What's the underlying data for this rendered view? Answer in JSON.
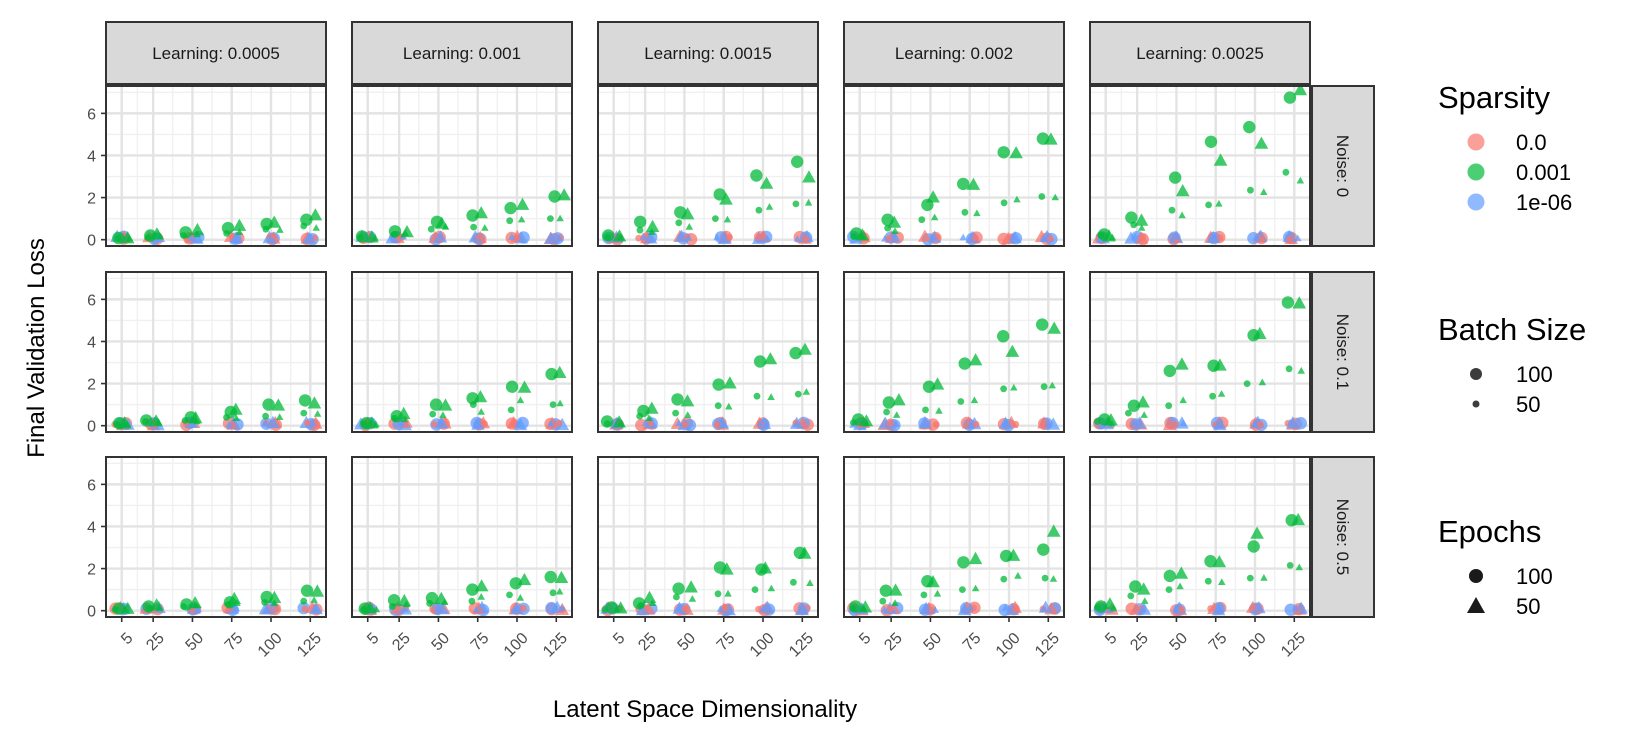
{
  "chart_data": {
    "type": "scatter",
    "xlabel": "Latent Space Dimensionality",
    "ylabel": "Final Validation Loss",
    "x_ticks": [
      5,
      25,
      50,
      75,
      100,
      125
    ],
    "y_ticks": [
      0,
      2,
      4,
      6
    ],
    "ylim": [
      -0.3,
      7.3
    ],
    "grid": true,
    "col_facets": [
      "Learning: 0.0005",
      "Learning: 0.001",
      "Learning: 0.0015",
      "Learning: 0.002",
      "Learning: 0.0025"
    ],
    "row_facets": [
      "Noise: 0",
      "Noise: 0.1",
      "Noise: 0.5"
    ],
    "legends": [
      {
        "title": "Sparsity",
        "kind": "color",
        "entries": [
          {
            "label": "0.0",
            "color": "#F8766D"
          },
          {
            "label": "0.001",
            "color": "#00BA38"
          },
          {
            "label": "1e-06",
            "color": "#619CFF"
          }
        ]
      },
      {
        "title": "Batch Size",
        "kind": "size",
        "entries": [
          {
            "label": "100",
            "size": "large"
          },
          {
            "label": "50",
            "size": "small"
          }
        ]
      },
      {
        "title": "Epochs",
        "kind": "shape",
        "entries": [
          {
            "label": "100",
            "shape": "circle"
          },
          {
            "label": "50",
            "shape": "triangle"
          }
        ]
      }
    ],
    "sparsity_colors": {
      "0.0": "#F8766D",
      "0.001": "#00BA38",
      "1e-06": "#619CFF"
    },
    "baseline_note": "Sparsity 0.0 and 1e-06 series stay near 0 in all panels",
    "panels": [
      {
        "learning": "0.0005",
        "noise": "0",
        "sparsity_0_001": {
          "e100_b100": [
            0.08,
            0.2,
            0.35,
            0.55,
            0.75,
            0.95
          ],
          "e50_b100": [
            0.06,
            0.25,
            0.45,
            0.65,
            0.8,
            1.15
          ],
          "e100_b50": [
            0.05,
            0.1,
            0.2,
            0.3,
            0.5,
            0.65
          ],
          "e50_b50": [
            0.05,
            0.15,
            0.25,
            0.35,
            0.45,
            0.55
          ]
        }
      },
      {
        "learning": "0.001",
        "noise": "0",
        "sparsity_0_001": {
          "e100_b100": [
            0.15,
            0.4,
            0.85,
            1.15,
            1.5,
            2.05
          ],
          "e50_b100": [
            0.1,
            0.35,
            0.75,
            1.25,
            1.65,
            2.1
          ],
          "e100_b50": [
            0.1,
            0.25,
            0.5,
            0.6,
            0.9,
            1.0
          ],
          "e50_b50": [
            0.08,
            0.3,
            0.6,
            0.55,
            0.95,
            1.0
          ]
        }
      },
      {
        "learning": "0.0015",
        "noise": "0",
        "sparsity_0_001": {
          "e100_b100": [
            0.2,
            0.85,
            1.3,
            2.15,
            3.05,
            3.7
          ],
          "e50_b100": [
            0.15,
            0.6,
            1.2,
            1.9,
            2.65,
            2.95
          ],
          "e100_b50": [
            0.1,
            0.45,
            0.8,
            1.0,
            1.4,
            1.7
          ],
          "e50_b50": [
            0.1,
            0.35,
            0.6,
            0.95,
            1.55,
            1.75
          ]
        }
      },
      {
        "learning": "0.002",
        "noise": "0",
        "sparsity_0_001": {
          "e100_b100": [
            0.3,
            0.95,
            1.65,
            2.65,
            4.15,
            4.8
          ],
          "e50_b100": [
            0.2,
            0.8,
            2.0,
            2.6,
            4.1,
            4.75
          ],
          "e100_b50": [
            0.15,
            0.55,
            0.95,
            1.3,
            1.75,
            2.05
          ],
          "e50_b50": [
            0.1,
            0.4,
            1.05,
            1.25,
            1.9,
            2.0
          ]
        }
      },
      {
        "learning": "0.0025",
        "noise": "0",
        "sparsity_0_001": {
          "e100_b100": [
            0.25,
            1.05,
            2.95,
            4.65,
            5.35,
            6.75
          ],
          "e50_b100": [
            0.15,
            0.9,
            2.3,
            3.75,
            4.55,
            7.1
          ],
          "e100_b50": [
            0.2,
            0.7,
            1.4,
            1.65,
            2.35,
            3.2
          ],
          "e50_b50": [
            0.1,
            0.55,
            1.15,
            1.7,
            2.25,
            2.8
          ]
        }
      },
      {
        "learning": "0.0005",
        "noise": "0.1",
        "sparsity_0_001": {
          "e100_b100": [
            0.12,
            0.25,
            0.4,
            0.65,
            1.0,
            1.2
          ],
          "e50_b100": [
            0.1,
            0.2,
            0.35,
            0.75,
            0.95,
            1.05
          ],
          "e100_b50": [
            0.05,
            0.2,
            0.25,
            0.4,
            0.45,
            0.6
          ],
          "e50_b50": [
            0.05,
            0.15,
            0.2,
            0.35,
            0.4,
            0.55
          ]
        }
      },
      {
        "learning": "0.001",
        "noise": "0.1",
        "sparsity_0_001": {
          "e100_b100": [
            0.12,
            0.45,
            1.0,
            1.3,
            1.85,
            2.45
          ],
          "e50_b100": [
            0.1,
            0.55,
            0.95,
            1.35,
            1.8,
            2.5
          ],
          "e100_b50": [
            0.08,
            0.35,
            0.55,
            1.0,
            0.75,
            1.0
          ],
          "e50_b50": [
            0.05,
            0.3,
            0.5,
            0.65,
            1.2,
            1.05
          ]
        }
      },
      {
        "learning": "0.0015",
        "noise": "0.1",
        "sparsity_0_001": {
          "e100_b100": [
            0.2,
            0.7,
            1.25,
            1.95,
            3.05,
            3.45
          ],
          "e50_b100": [
            0.15,
            0.8,
            1.15,
            2.0,
            3.15,
            3.6
          ],
          "e100_b50": [
            0.1,
            0.45,
            0.6,
            0.95,
            1.4,
            1.5
          ],
          "e50_b50": [
            0.08,
            0.35,
            0.5,
            0.9,
            1.35,
            1.6
          ]
        }
      },
      {
        "learning": "0.002",
        "noise": "0.1",
        "sparsity_0_001": {
          "e100_b100": [
            0.3,
            1.1,
            1.85,
            2.95,
            4.25,
            4.8
          ],
          "e50_b100": [
            0.2,
            1.2,
            1.95,
            3.1,
            3.5,
            4.6
          ],
          "e100_b50": [
            0.15,
            0.65,
            0.75,
            1.15,
            1.75,
            1.85
          ],
          "e50_b50": [
            0.1,
            0.5,
            0.7,
            1.2,
            1.8,
            1.9
          ]
        }
      },
      {
        "learning": "0.0025",
        "noise": "0.1",
        "sparsity_0_001": {
          "e100_b100": [
            0.3,
            0.95,
            2.6,
            2.85,
            4.3,
            5.85
          ],
          "e50_b100": [
            0.25,
            1.1,
            2.9,
            2.85,
            4.35,
            5.8
          ],
          "e100_b50": [
            0.2,
            0.6,
            0.95,
            1.4,
            2.0,
            2.7
          ],
          "e50_b50": [
            0.1,
            0.5,
            1.2,
            1.5,
            2.05,
            2.6
          ]
        }
      },
      {
        "learning": "0.0005",
        "noise": "0.5",
        "sparsity_0_001": {
          "e100_b100": [
            0.1,
            0.2,
            0.3,
            0.4,
            0.65,
            0.95
          ],
          "e50_b100": [
            0.08,
            0.25,
            0.35,
            0.55,
            0.6,
            0.9
          ],
          "e100_b50": [
            0.05,
            0.12,
            0.2,
            0.3,
            0.4,
            0.45
          ],
          "e50_b50": [
            0.05,
            0.1,
            0.25,
            0.35,
            0.35,
            0.5
          ]
        }
      },
      {
        "learning": "0.001",
        "noise": "0.5",
        "sparsity_0_001": {
          "e100_b100": [
            0.1,
            0.5,
            0.6,
            1.0,
            1.3,
            1.6
          ],
          "e50_b100": [
            0.1,
            0.45,
            0.55,
            1.15,
            1.45,
            1.55
          ],
          "e100_b50": [
            0.05,
            0.2,
            0.35,
            0.45,
            0.75,
            0.85
          ],
          "e50_b50": [
            0.05,
            0.3,
            0.4,
            0.65,
            0.6,
            0.9
          ]
        }
      },
      {
        "learning": "0.0015",
        "noise": "0.5",
        "sparsity_0_001": {
          "e100_b100": [
            0.15,
            0.35,
            1.05,
            2.05,
            1.95,
            2.75
          ],
          "e50_b100": [
            0.1,
            0.6,
            1.1,
            1.95,
            2.0,
            2.7
          ],
          "e100_b50": [
            0.05,
            0.25,
            0.65,
            0.8,
            1.0,
            1.35
          ],
          "e50_b50": [
            0.05,
            0.35,
            0.55,
            0.8,
            1.05,
            1.3
          ]
        }
      },
      {
        "learning": "0.002",
        "noise": "0.5",
        "sparsity_0_001": {
          "e100_b100": [
            0.2,
            0.95,
            1.4,
            2.3,
            2.6,
            2.9
          ],
          "e50_b100": [
            0.15,
            0.95,
            1.35,
            2.45,
            2.6,
            3.75
          ],
          "e100_b50": [
            0.1,
            0.45,
            0.75,
            1.0,
            1.5,
            1.55
          ],
          "e50_b50": [
            0.1,
            0.35,
            0.8,
            1.05,
            1.65,
            1.5
          ]
        }
      },
      {
        "learning": "0.0025",
        "noise": "0.5",
        "sparsity_0_001": {
          "e100_b100": [
            0.2,
            1.15,
            1.65,
            2.35,
            3.05,
            4.3
          ],
          "e50_b100": [
            0.3,
            1.0,
            1.75,
            2.3,
            3.65,
            4.3
          ],
          "e100_b50": [
            0.15,
            0.7,
            1.0,
            1.4,
            1.55,
            2.15
          ],
          "e50_b50": [
            0.1,
            0.45,
            1.15,
            1.35,
            1.55,
            2.05
          ]
        }
      }
    ]
  }
}
